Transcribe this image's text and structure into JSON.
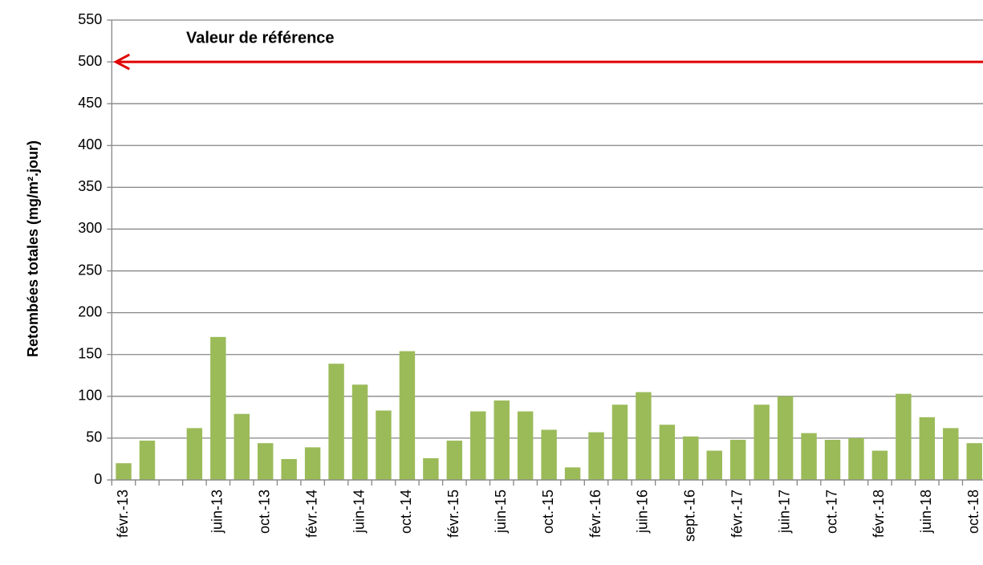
{
  "chart_data": {
    "type": "bar",
    "y_label": "Retombées totales (mg/m².jour)",
    "categories": [
      "févr.-13",
      null,
      null,
      null,
      "juin-13",
      null,
      "oct.-13",
      null,
      "févr.-14",
      null,
      "juin-14",
      null,
      "oct.-14",
      null,
      "févr.-15",
      null,
      "juin-15",
      null,
      "oct.-15",
      null,
      "févr.-16",
      null,
      "juin-16",
      null,
      "sept.-16",
      null,
      "févr.-17",
      null,
      "juin-17",
      null,
      "oct.-17",
      null,
      "févr.-18",
      null,
      "juin-18",
      null,
      "oct.-18"
    ],
    "values": [
      20,
      47,
      null,
      62,
      171,
      79,
      44,
      25,
      39,
      139,
      114,
      83,
      154,
      26,
      47,
      82,
      95,
      82,
      60,
      15,
      57,
      90,
      105,
      66,
      52,
      35,
      48,
      90,
      100,
      56,
      48,
      50,
      35,
      103,
      75,
      62,
      44
    ],
    "color": "#9bbb59",
    "ylim": [
      0,
      550
    ],
    "yticks": [
      0,
      50,
      100,
      150,
      200,
      250,
      300,
      350,
      400,
      450,
      500,
      550
    ],
    "grid": true,
    "reference": {
      "text": "Valeur de référence",
      "value": 500,
      "color": "#e00000"
    }
  }
}
